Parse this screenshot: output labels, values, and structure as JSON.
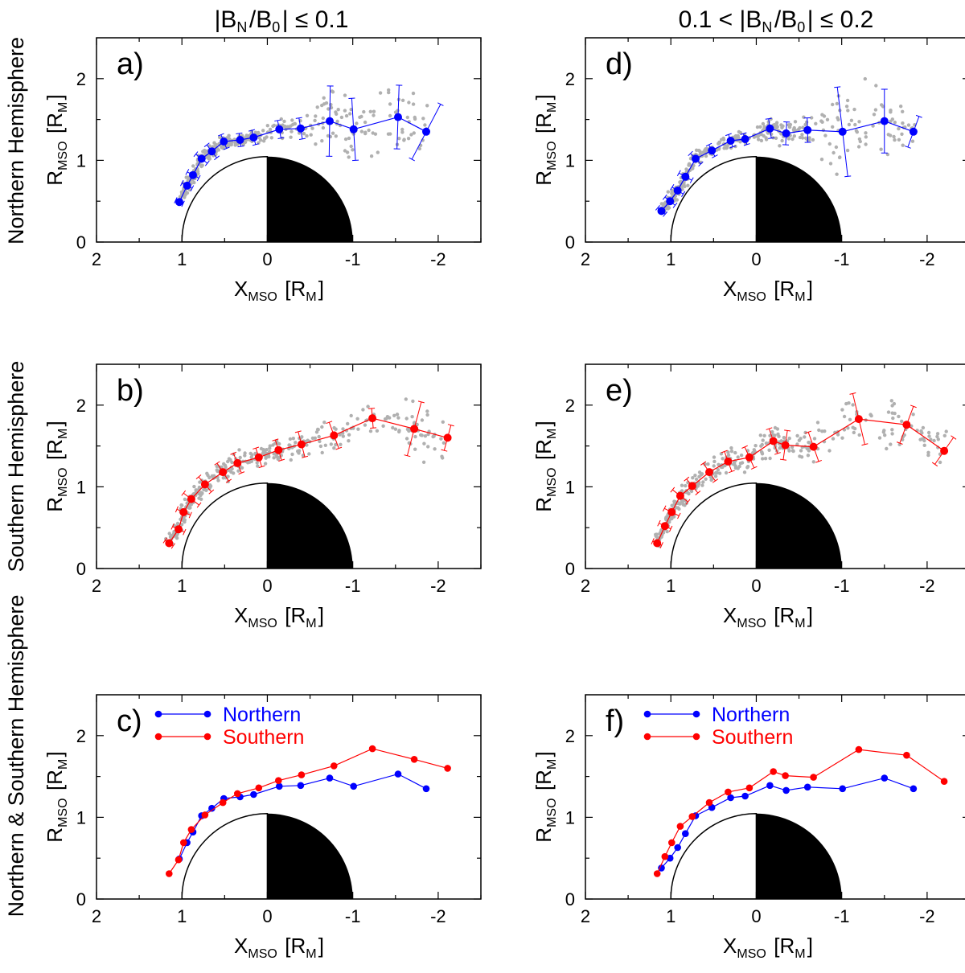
{
  "figure": {
    "column_titles": [
      "|B_N/B_0| ≤ 0.1",
      "0.1 < |B_N/B_0| ≤ 0.2"
    ],
    "row_titles": [
      "Northern Hemisphere",
      "Southern Hemisphere",
      "Northern & Southern Hemisphere"
    ]
  },
  "colors": {
    "northern": "#0000ff",
    "southern": "#ff0000",
    "scatter": "#b0b0b0",
    "planet_night": "#000000"
  },
  "chart_data": [
    {
      "id": "a",
      "panel_label": "a)",
      "type": "line+scatter",
      "xlabel": "X_MSO [R_M]",
      "ylabel": "R_MSO [R_M]",
      "xlim": [
        2.0,
        -2.5
      ],
      "ylim": [
        0,
        2.5
      ],
      "xticks": [
        "2",
        "1",
        "0",
        "-1",
        "-2"
      ],
      "yticks": [
        "0",
        "1",
        "2"
      ],
      "series": [
        {
          "name": "Northern",
          "color": "#0000ff",
          "x": [
            1.03,
            0.94,
            0.87,
            0.77,
            0.65,
            0.51,
            0.32,
            0.16,
            -0.14,
            -0.39,
            -0.73,
            -1.01,
            -1.53,
            -1.86
          ],
          "y": [
            0.49,
            0.69,
            0.82,
            1.02,
            1.11,
            1.23,
            1.25,
            1.28,
            1.38,
            1.39,
            1.48,
            1.38,
            1.53,
            1.35
          ],
          "err": [
            0.05,
            0.07,
            0.08,
            0.09,
            0.1,
            0.09,
            0.08,
            0.09,
            0.11,
            0.13,
            0.43,
            0.38,
            0.39,
            0.38
          ]
        }
      ]
    },
    {
      "id": "b",
      "panel_label": "b)",
      "type": "line+scatter",
      "xlabel": "X_MSO [R_M]",
      "ylabel": "R_MSO [R_M]",
      "xlim": [
        2.0,
        -2.5
      ],
      "ylim": [
        0,
        2.5
      ],
      "xticks": [
        "2",
        "1",
        "0",
        "-1",
        "-2"
      ],
      "yticks": [
        "0",
        "1",
        "2"
      ],
      "series": [
        {
          "name": "Southern",
          "color": "#ff0000",
          "x": [
            1.15,
            1.04,
            0.98,
            0.89,
            0.73,
            0.52,
            0.35,
            0.1,
            -0.13,
            -0.4,
            -0.78,
            -1.23,
            -1.72,
            -2.11
          ],
          "y": [
            0.31,
            0.48,
            0.69,
            0.85,
            1.03,
            1.18,
            1.29,
            1.36,
            1.45,
            1.52,
            1.63,
            1.84,
            1.71,
            1.6
          ],
          "err": [
            0.06,
            0.08,
            0.09,
            0.12,
            0.12,
            0.13,
            0.13,
            0.12,
            0.13,
            0.16,
            0.17,
            0.12,
            0.34,
            0.16
          ]
        }
      ]
    },
    {
      "id": "c",
      "panel_label": "c)",
      "type": "line",
      "xlabel": "X_MSO [R_M]",
      "ylabel": "R_MSO [R_M]",
      "xlim": [
        2.0,
        -2.5
      ],
      "ylim": [
        0,
        2.5
      ],
      "xticks": [
        "2",
        "1",
        "0",
        "-1",
        "-2"
      ],
      "yticks": [
        "0",
        "1",
        "2"
      ],
      "legend": [
        "Northern",
        "Southern"
      ],
      "series": [
        {
          "name": "Northern",
          "color": "#0000ff",
          "x": [
            1.03,
            0.94,
            0.87,
            0.77,
            0.65,
            0.51,
            0.32,
            0.16,
            -0.14,
            -0.39,
            -0.73,
            -1.01,
            -1.53,
            -1.86
          ],
          "y": [
            0.49,
            0.69,
            0.82,
            1.02,
            1.11,
            1.23,
            1.25,
            1.28,
            1.38,
            1.39,
            1.48,
            1.38,
            1.53,
            1.35
          ]
        },
        {
          "name": "Southern",
          "color": "#ff0000",
          "x": [
            1.15,
            1.04,
            0.98,
            0.89,
            0.73,
            0.52,
            0.35,
            0.1,
            -0.13,
            -0.4,
            -0.78,
            -1.23,
            -1.72,
            -2.11
          ],
          "y": [
            0.31,
            0.48,
            0.69,
            0.85,
            1.03,
            1.18,
            1.29,
            1.36,
            1.45,
            1.52,
            1.63,
            1.84,
            1.71,
            1.6
          ]
        }
      ]
    },
    {
      "id": "d",
      "panel_label": "d)",
      "type": "line+scatter",
      "xlabel": "X_MSO [R_M]",
      "ylabel": "R_MSO [R_M]",
      "xlim": [
        2.0,
        -2.5
      ],
      "ylim": [
        0,
        2.5
      ],
      "xticks": [
        "2",
        "1",
        "0",
        "-1",
        "-2"
      ],
      "yticks": [
        "0",
        "1",
        "2"
      ],
      "series": [
        {
          "name": "Northern",
          "color": "#0000ff",
          "x": [
            1.11,
            1.01,
            0.92,
            0.83,
            0.71,
            0.52,
            0.3,
            0.13,
            -0.16,
            -0.35,
            -0.6,
            -1.01,
            -1.5,
            -1.84
          ],
          "y": [
            0.38,
            0.5,
            0.63,
            0.8,
            1.02,
            1.12,
            1.24,
            1.26,
            1.39,
            1.33,
            1.37,
            1.35,
            1.48,
            1.35
          ],
          "err": [
            0.06,
            0.08,
            0.08,
            0.09,
            0.09,
            0.08,
            0.08,
            0.07,
            0.12,
            0.14,
            0.15,
            0.55,
            0.39,
            0.2
          ]
        }
      ]
    },
    {
      "id": "e",
      "panel_label": "e)",
      "type": "line+scatter",
      "xlabel": "X_MSO [R_M]",
      "ylabel": "R_MSO [R_M]",
      "xlim": [
        2.0,
        -2.5
      ],
      "ylim": [
        0,
        2.5
      ],
      "xticks": [
        "2",
        "1",
        "0",
        "-1",
        "-2"
      ],
      "yticks": [
        "0",
        "1",
        "2"
      ],
      "series": [
        {
          "name": "Southern",
          "color": "#ff0000",
          "x": [
            1.16,
            1.07,
            0.99,
            0.89,
            0.75,
            0.55,
            0.33,
            0.08,
            -0.2,
            -0.34,
            -0.67,
            -1.2,
            -1.76,
            -2.2
          ],
          "y": [
            0.31,
            0.52,
            0.69,
            0.89,
            1.01,
            1.18,
            1.31,
            1.36,
            1.56,
            1.51,
            1.49,
            1.83,
            1.76,
            1.44
          ],
          "err": [
            0.06,
            0.08,
            0.1,
            0.12,
            0.11,
            0.13,
            0.13,
            0.14,
            0.16,
            0.18,
            0.19,
            0.32,
            0.24,
            0.2
          ]
        }
      ]
    },
    {
      "id": "f",
      "panel_label": "f)",
      "type": "line",
      "xlabel": "X_MSO [R_M]",
      "ylabel": "R_MSO [R_M]",
      "xlim": [
        2.0,
        -2.5
      ],
      "ylim": [
        0,
        2.5
      ],
      "xticks": [
        "2",
        "1",
        "0",
        "-1",
        "-2"
      ],
      "yticks": [
        "0",
        "1",
        "2"
      ],
      "legend": [
        "Northern",
        "Southern"
      ],
      "series": [
        {
          "name": "Northern",
          "color": "#0000ff",
          "x": [
            1.11,
            1.01,
            0.92,
            0.83,
            0.71,
            0.52,
            0.3,
            0.13,
            -0.16,
            -0.35,
            -0.6,
            -1.01,
            -1.5,
            -1.84
          ],
          "y": [
            0.38,
            0.5,
            0.63,
            0.8,
            1.02,
            1.12,
            1.24,
            1.26,
            1.39,
            1.33,
            1.37,
            1.35,
            1.48,
            1.35
          ]
        },
        {
          "name": "Southern",
          "color": "#ff0000",
          "x": [
            1.16,
            1.07,
            0.99,
            0.89,
            0.75,
            0.55,
            0.33,
            0.08,
            -0.2,
            -0.34,
            -0.67,
            -1.2,
            -1.76,
            -2.2
          ],
          "y": [
            0.31,
            0.52,
            0.69,
            0.89,
            1.01,
            1.18,
            1.31,
            1.36,
            1.56,
            1.51,
            1.49,
            1.83,
            1.76,
            1.44
          ]
        }
      ]
    }
  ]
}
